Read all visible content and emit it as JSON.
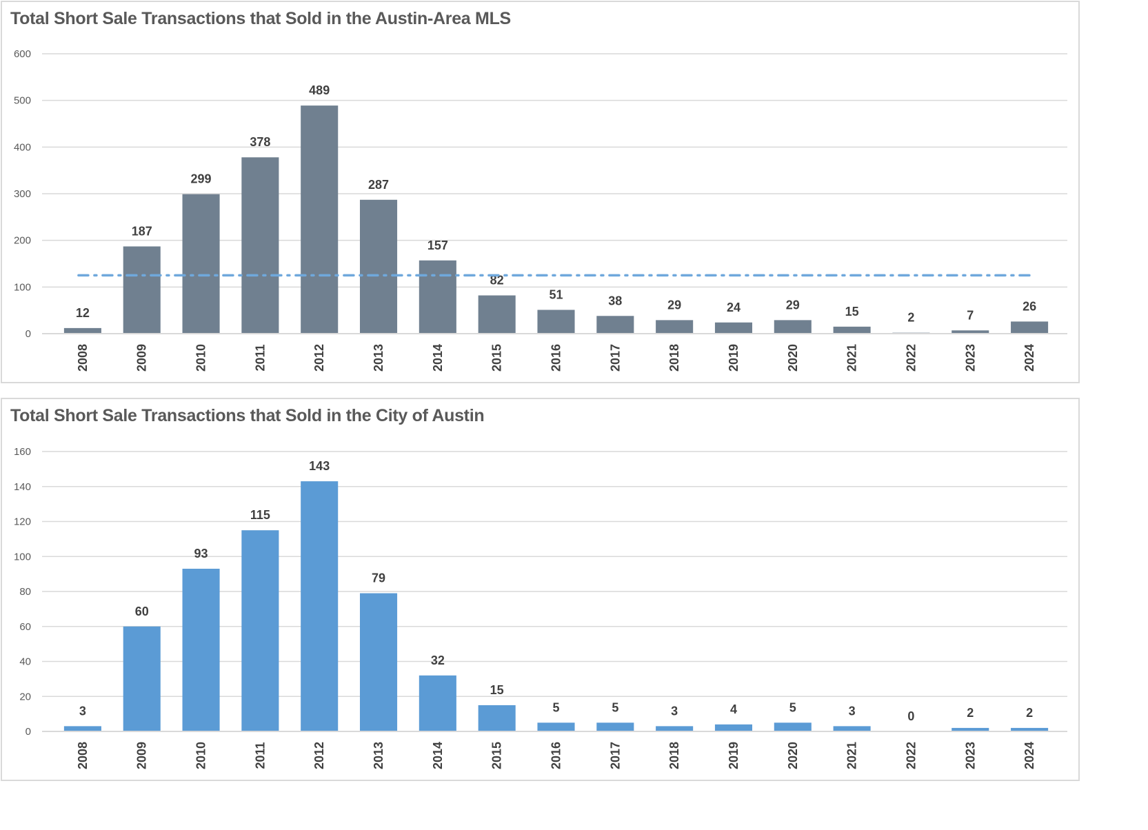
{
  "chart_data": [
    {
      "type": "bar",
      "title": "Total Short Sale Transactions that Sold in the Austin-Area MLS",
      "categories": [
        "2008",
        "2009",
        "2010",
        "2011",
        "2012",
        "2013",
        "2014",
        "2015",
        "2016",
        "2017",
        "2018",
        "2019",
        "2020",
        "2021",
        "2022",
        "2023",
        "2024"
      ],
      "values": [
        12,
        187,
        299,
        378,
        489,
        287,
        157,
        82,
        51,
        38,
        29,
        24,
        29,
        15,
        2,
        7,
        26
      ],
      "ylim": [
        0,
        600
      ],
      "yticks": [
        0,
        100,
        200,
        300,
        400,
        500,
        600
      ],
      "grid": true,
      "bar_color": "#708090",
      "reference_line": {
        "value": 125,
        "style": "dash-dot",
        "color": "#6fa8dc"
      },
      "xlabel": "",
      "ylabel": ""
    },
    {
      "type": "bar",
      "title": "Total Short Sale Transactions that Sold in the City of Austin",
      "categories": [
        "2008",
        "2009",
        "2010",
        "2011",
        "2012",
        "2013",
        "2014",
        "2015",
        "2016",
        "2017",
        "2018",
        "2019",
        "2020",
        "2021",
        "2022",
        "2023",
        "2024"
      ],
      "values": [
        3,
        60,
        93,
        115,
        143,
        79,
        32,
        15,
        5,
        5,
        3,
        4,
        5,
        3,
        0,
        2,
        2
      ],
      "ylim": [
        0,
        160
      ],
      "yticks": [
        0,
        20,
        40,
        60,
        80,
        100,
        120,
        140,
        160
      ],
      "grid": true,
      "bar_color": "#5b9bd5",
      "xlabel": "",
      "ylabel": ""
    }
  ]
}
